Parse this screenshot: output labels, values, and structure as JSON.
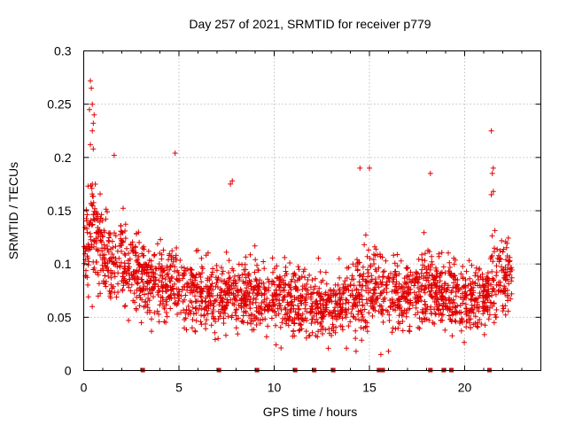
{
  "chart_data": {
    "type": "scatter",
    "title": "Day 257 of 2021, SRMTID for receiver p779",
    "xlabel": "GPS time / hours",
    "ylabel": "SRMTID / TECUs",
    "xlim": [
      0,
      24
    ],
    "ylim": [
      0,
      0.3
    ],
    "x_ticks": [
      0,
      5,
      10,
      15,
      20
    ],
    "y_ticks": [
      0,
      0.05,
      0.1,
      0.15,
      0.2,
      0.25,
      0.3
    ],
    "x_tick_labels": [
      "0",
      "5",
      "10",
      "15",
      "20"
    ],
    "y_tick_labels": [
      "0",
      "0.05",
      "0.1",
      "0.15",
      "0.2",
      "0.25",
      "0.3"
    ],
    "grid": true,
    "marker": "+",
    "color": "#e00000",
    "gap_markers_x": [
      3.1,
      7.1,
      9.1,
      11.1,
      12.1,
      13.1,
      15.5,
      15.7,
      18.2,
      18.9,
      19.3,
      21.3
    ],
    "profile_note": "approximate envelope of the dense point cloud, in data units",
    "profile": {
      "hours": [
        0,
        0.5,
        1,
        1.5,
        2,
        2.5,
        3,
        3.5,
        4,
        5,
        6,
        7,
        8,
        9,
        10,
        11,
        12,
        13,
        14,
        14.5,
        15,
        15.5,
        16,
        17,
        18,
        19,
        20,
        21,
        21.5,
        22,
        22.5
      ],
      "center": [
        0.12,
        0.13,
        0.11,
        0.1,
        0.1,
        0.095,
        0.09,
        0.085,
        0.085,
        0.08,
        0.075,
        0.07,
        0.072,
        0.07,
        0.068,
        0.068,
        0.062,
        0.058,
        0.065,
        0.07,
        0.085,
        0.075,
        0.07,
        0.075,
        0.078,
        0.072,
        0.065,
        0.07,
        0.085,
        0.09,
        0.085
      ],
      "spread": [
        0.03,
        0.05,
        0.04,
        0.035,
        0.035,
        0.035,
        0.03,
        0.03,
        0.03,
        0.03,
        0.03,
        0.03,
        0.03,
        0.03,
        0.03,
        0.03,
        0.028,
        0.025,
        0.03,
        0.035,
        0.04,
        0.03,
        0.03,
        0.03,
        0.03,
        0.03,
        0.028,
        0.03,
        0.04,
        0.035,
        0.03
      ]
    },
    "n_points": 2300,
    "highlighted_points": [
      {
        "x": 0.35,
        "y": 0.272
      },
      {
        "x": 0.4,
        "y": 0.265
      },
      {
        "x": 0.45,
        "y": 0.25
      },
      {
        "x": 0.3,
        "y": 0.245
      },
      {
        "x": 0.55,
        "y": 0.24
      },
      {
        "x": 0.5,
        "y": 0.232
      },
      {
        "x": 0.45,
        "y": 0.225
      },
      {
        "x": 0.35,
        "y": 0.212
      },
      {
        "x": 0.5,
        "y": 0.208
      },
      {
        "x": 1.6,
        "y": 0.202
      },
      {
        "x": 4.8,
        "y": 0.204
      },
      {
        "x": 21.4,
        "y": 0.225
      },
      {
        "x": 21.5,
        "y": 0.19
      },
      {
        "x": 21.45,
        "y": 0.185
      },
      {
        "x": 15.0,
        "y": 0.19
      },
      {
        "x": 14.5,
        "y": 0.19
      },
      {
        "x": 18.2,
        "y": 0.185
      },
      {
        "x": 21.5,
        "y": 0.168
      },
      {
        "x": 21.4,
        "y": 0.165
      },
      {
        "x": 7.8,
        "y": 0.178
      },
      {
        "x": 7.7,
        "y": 0.175
      },
      {
        "x": 15.6,
        "y": 0.015
      },
      {
        "x": 16.0,
        "y": 0.018
      },
      {
        "x": 14.3,
        "y": 0.018
      }
    ]
  }
}
